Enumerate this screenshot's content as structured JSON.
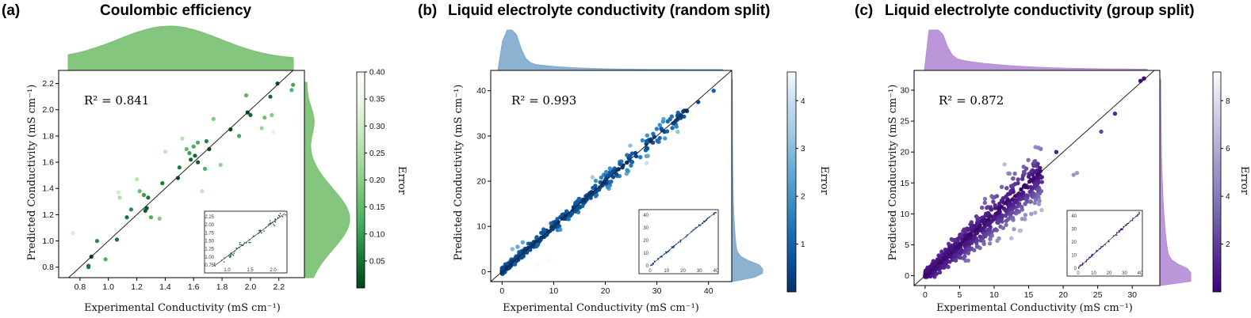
{
  "chart_data": [
    {
      "type": "scatter",
      "panel_letter": "(a)",
      "title": "Coulombic efficiency",
      "xlabel": "Experimental Conductivity (mS cm⁻¹)",
      "ylabel": "Predicted Conductivity (mS cm⁻¹)",
      "xlim": [
        0.65,
        2.38
      ],
      "ylim": [
        0.72,
        2.3
      ],
      "xticks": [
        0.8,
        1.0,
        1.2,
        1.4,
        1.6,
        1.8,
        2.0,
        2.2
      ],
      "xtick_labels": [
        "0.8",
        "1.0",
        "1.2",
        "1.4",
        "1.6",
        "1.8",
        "2.0",
        "2.2"
      ],
      "yticks": [
        0.8,
        1.0,
        1.2,
        1.4,
        1.6,
        1.8,
        2.0,
        2.2
      ],
      "ytick_labels": [
        "0.8",
        "1.0",
        "1.2",
        "1.4",
        "1.6",
        "1.8",
        "2.0",
        "2.2"
      ],
      "r2_text": "R² = 0.841",
      "colorbar": {
        "label": "Error",
        "range": [
          0.0,
          0.4
        ],
        "ticks": [
          0.05,
          0.1,
          0.15,
          0.2,
          0.25,
          0.3,
          0.35,
          0.4
        ],
        "tick_labels": [
          "0.05",
          "0.10",
          "0.15",
          "0.20",
          "0.25",
          "0.30",
          "0.35",
          "0.40"
        ],
        "colormap": [
          "#00441b",
          "#1b7837",
          "#41ab5d",
          "#74c476",
          "#a1d99b",
          "#c7e9c0",
          "#edf8e9",
          "#ffffff"
        ]
      },
      "marginal_color": "#78c070",
      "points": [
        [
          0.75,
          1.06
        ],
        [
          0.86,
          0.81
        ],
        [
          0.86,
          0.8
        ],
        [
          0.88,
          0.88
        ],
        [
          0.92,
          1.0
        ],
        [
          0.98,
          0.86
        ],
        [
          1.06,
          1.01
        ],
        [
          1.07,
          1.37
        ],
        [
          1.08,
          1.33
        ],
        [
          1.13,
          1.18
        ],
        [
          1.16,
          1.24
        ],
        [
          1.2,
          1.47
        ],
        [
          1.22,
          1.38
        ],
        [
          1.25,
          1.35
        ],
        [
          1.26,
          1.23
        ],
        [
          1.27,
          1.25
        ],
        [
          1.28,
          1.33
        ],
        [
          1.3,
          1.18
        ],
        [
          1.36,
          1.17
        ],
        [
          1.38,
          1.44
        ],
        [
          1.4,
          1.68
        ],
        [
          1.49,
          1.48
        ],
        [
          1.5,
          1.56
        ],
        [
          1.52,
          1.78
        ],
        [
          1.55,
          1.7
        ],
        [
          1.57,
          1.67
        ],
        [
          1.58,
          1.62
        ],
        [
          1.6,
          1.72
        ],
        [
          1.61,
          1.65
        ],
        [
          1.63,
          1.6
        ],
        [
          1.63,
          1.75
        ],
        [
          1.66,
          1.38
        ],
        [
          1.68,
          1.55
        ],
        [
          1.69,
          1.76
        ],
        [
          1.71,
          1.7
        ],
        [
          1.74,
          1.93
        ],
        [
          1.79,
          1.58
        ],
        [
          1.86,
          1.85
        ],
        [
          1.97,
          2.11
        ],
        [
          1.98,
          1.98
        ],
        [
          2.0,
          1.96
        ],
        [
          2.08,
          1.86
        ],
        [
          2.1,
          1.94
        ],
        [
          2.14,
          2.1
        ],
        [
          2.15,
          1.96
        ],
        [
          2.19,
          2.2
        ],
        [
          2.29,
          2.15
        ],
        [
          2.3,
          2.19
        ],
        [
          2.3,
          1.92
        ],
        [
          2.33,
          1.93
        ],
        [
          2.16,
          1.83
        ],
        [
          1.92,
          1.8
        ]
      ],
      "inset": {
        "ticks_x": [
          "1.0",
          "1.5",
          "2.0"
        ],
        "ticks_y": [
          "0.75",
          "1.00",
          "1.25",
          "1.50",
          "1.75",
          "2.00",
          "2.25"
        ]
      }
    },
    {
      "type": "scatter",
      "panel_letter": "(b)",
      "title": "Liquid electrolyte conductivity (random split)",
      "xlabel": "Experimental Conductivity (mS cm⁻¹)",
      "ylabel": "Predicted Conductivity (mS cm⁻¹)",
      "xlim": [
        -2.2,
        44.5
      ],
      "ylim": [
        -2.2,
        44.5
      ],
      "xticks": [
        0,
        10,
        20,
        30,
        40
      ],
      "xtick_labels": [
        "0",
        "10",
        "20",
        "30",
        "40"
      ],
      "yticks": [
        0,
        10,
        20,
        30,
        40
      ],
      "ytick_labels": [
        "0",
        "10",
        "20",
        "30",
        "40"
      ],
      "r2_text": "R² = 0.993",
      "colorbar": {
        "label": "Error",
        "range": [
          0.0,
          4.6
        ],
        "ticks": [
          1,
          2,
          3,
          4
        ],
        "tick_labels": [
          "1",
          "2",
          "3",
          "4"
        ],
        "colormap": [
          "#08306b",
          "#08519c",
          "#2171b5",
          "#4292c6",
          "#6baed6",
          "#9ecae1",
          "#c6dbef",
          "#f7fbff"
        ]
      },
      "marginal_color": "#7fa8cc",
      "inset": {
        "ticks_x": [
          "0",
          "10",
          "20",
          "30",
          "40"
        ],
        "ticks_y": [
          "0",
          "10",
          "20",
          "30",
          "40"
        ]
      }
    },
    {
      "type": "scatter",
      "panel_letter": "(c)",
      "title": "Liquid electrolyte conductivity (group split)",
      "xlabel": "Experimental Conductivity (mS cm⁻¹)",
      "ylabel": "Predicted Conductivity (mS cm⁻¹)",
      "xlim": [
        -1.6,
        34.0
      ],
      "ylim": [
        -1.6,
        33.2
      ],
      "xticks": [
        0,
        5,
        10,
        15,
        20,
        25,
        30
      ],
      "xtick_labels": [
        "0",
        "5",
        "10",
        "15",
        "20",
        "25",
        "30"
      ],
      "yticks": [
        0,
        5,
        10,
        15,
        20,
        25,
        30
      ],
      "ytick_labels": [
        "0",
        "5",
        "10",
        "15",
        "20",
        "25",
        "30"
      ],
      "r2_text": "R² = 0.872",
      "colorbar": {
        "label": "Error",
        "range": [
          0.0,
          9.2
        ],
        "ticks": [
          2,
          4,
          6,
          8
        ],
        "tick_labels": [
          "2",
          "4",
          "6",
          "8"
        ],
        "colormap": [
          "#3f007d",
          "#54278f",
          "#6a51a3",
          "#807dba",
          "#9e9ac8",
          "#bcbddc",
          "#dadaeb",
          "#fcfbfd"
        ]
      },
      "marginal_color": "#b48cd6",
      "inset": {
        "ticks_x": [
          "0",
          "10",
          "20",
          "30",
          "40"
        ],
        "ticks_y": [
          "0",
          "10",
          "20",
          "30",
          "40"
        ]
      }
    }
  ]
}
